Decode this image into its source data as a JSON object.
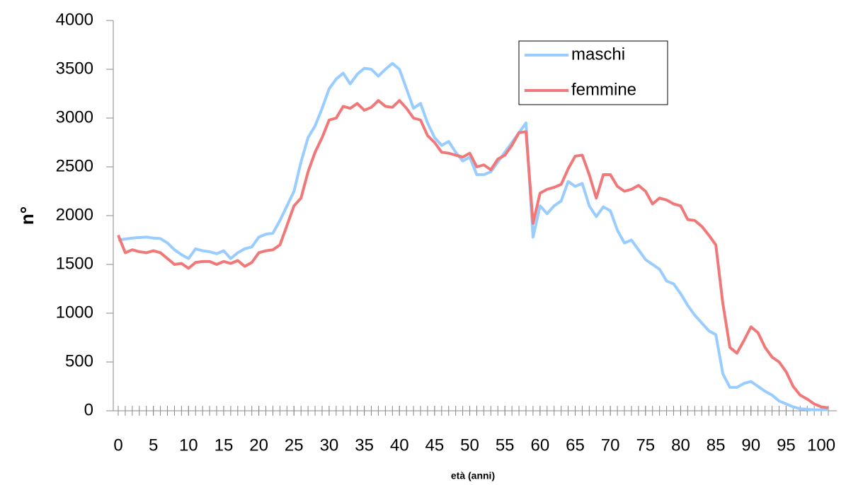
{
  "chart_data": {
    "type": "line",
    "x_label": "età (anni)",
    "y_label": "n°",
    "x": [
      0,
      1,
      2,
      3,
      4,
      5,
      6,
      7,
      8,
      9,
      10,
      11,
      12,
      13,
      14,
      15,
      16,
      17,
      18,
      19,
      20,
      21,
      22,
      23,
      24,
      25,
      26,
      27,
      28,
      29,
      30,
      31,
      32,
      33,
      34,
      35,
      36,
      37,
      38,
      39,
      40,
      41,
      42,
      43,
      44,
      45,
      46,
      47,
      48,
      49,
      50,
      51,
      52,
      53,
      54,
      55,
      56,
      57,
      58,
      59,
      60,
      61,
      62,
      63,
      64,
      65,
      66,
      67,
      68,
      69,
      70,
      71,
      72,
      73,
      74,
      75,
      76,
      77,
      78,
      79,
      80,
      81,
      82,
      83,
      84,
      85,
      86,
      87,
      88,
      89,
      90,
      91,
      92,
      93,
      94,
      95,
      96,
      97,
      98,
      99,
      100,
      101
    ],
    "series": [
      {
        "name": "maschi",
        "color": "#99ccff",
        "values": [
          1750,
          1760,
          1770,
          1775,
          1780,
          1770,
          1765,
          1720,
          1650,
          1600,
          1560,
          1660,
          1640,
          1630,
          1610,
          1640,
          1560,
          1620,
          1660,
          1680,
          1780,
          1810,
          1820,
          1950,
          2100,
          2250,
          2550,
          2800,
          2920,
          3100,
          3300,
          3400,
          3460,
          3350,
          3450,
          3510,
          3500,
          3430,
          3500,
          3560,
          3500,
          3300,
          3100,
          3150,
          2950,
          2800,
          2720,
          2760,
          2650,
          2560,
          2600,
          2420,
          2420,
          2450,
          2550,
          2650,
          2750,
          2850,
          2950,
          1780,
          2100,
          2020,
          2100,
          2150,
          2350,
          2300,
          2330,
          2100,
          1990,
          2090,
          2050,
          1850,
          1720,
          1750,
          1650,
          1550,
          1500,
          1450,
          1330,
          1300,
          1200,
          1080,
          980,
          900,
          820,
          780,
          380,
          240,
          240,
          280,
          300,
          250,
          200,
          160,
          100,
          70,
          40,
          20,
          15,
          10,
          10,
          10
        ]
      },
      {
        "name": "femmine",
        "color": "#f07878",
        "values": [
          1800,
          1620,
          1650,
          1630,
          1620,
          1640,
          1620,
          1560,
          1500,
          1510,
          1460,
          1520,
          1530,
          1530,
          1500,
          1530,
          1510,
          1540,
          1480,
          1520,
          1620,
          1640,
          1650,
          1700,
          1900,
          2100,
          2180,
          2450,
          2650,
          2800,
          2980,
          3000,
          3120,
          3100,
          3150,
          3080,
          3110,
          3180,
          3120,
          3110,
          3180,
          3100,
          3000,
          2980,
          2820,
          2750,
          2650,
          2640,
          2620,
          2600,
          2640,
          2500,
          2520,
          2470,
          2580,
          2620,
          2720,
          2850,
          2860,
          1920,
          2230,
          2270,
          2290,
          2320,
          2480,
          2610,
          2620,
          2420,
          2180,
          2420,
          2420,
          2300,
          2250,
          2270,
          2310,
          2250,
          2120,
          2180,
          2160,
          2120,
          2100,
          1960,
          1950,
          1890,
          1800,
          1700,
          1100,
          650,
          590,
          720,
          860,
          800,
          650,
          550,
          500,
          400,
          250,
          160,
          120,
          70,
          40,
          30
        ]
      }
    ],
    "xlim": [
      0,
      101
    ],
    "xticks": [
      0,
      5,
      10,
      15,
      20,
      25,
      30,
      35,
      40,
      45,
      50,
      55,
      60,
      65,
      70,
      75,
      80,
      85,
      90,
      95,
      100
    ],
    "ylim": [
      0,
      4000
    ],
    "yticks": [
      0,
      500,
      1000,
      1500,
      2000,
      2500,
      3000,
      3500,
      4000
    ],
    "grid": false,
    "legend": "upper right"
  }
}
